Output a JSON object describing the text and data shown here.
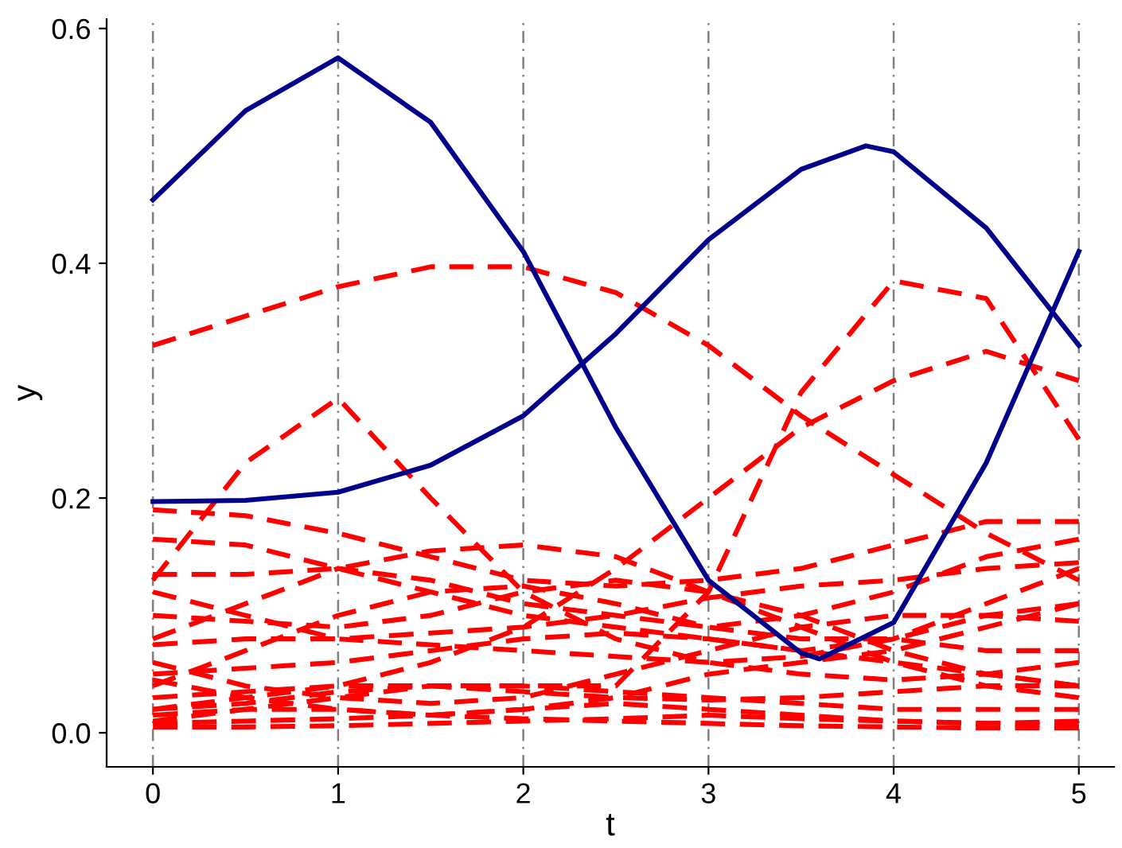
{
  "chart_data": {
    "type": "line",
    "xlabel": "t",
    "ylabel": "y",
    "x": [
      0,
      0.5,
      1,
      1.5,
      2,
      2.5,
      3,
      3.5,
      4,
      4.5,
      5
    ],
    "xlim": [
      -0.25,
      5.19
    ],
    "xticks": [
      0,
      1,
      2,
      3,
      4,
      5
    ],
    "ylim": [
      -0.029,
      0.608
    ],
    "yticks": [
      {
        "value": 0,
        "label": "0.0"
      },
      {
        "value": 0.2,
        "label": "0.2"
      },
      {
        "value": 0.4,
        "label": "0.4"
      },
      {
        "value": 0.6,
        "label": "0.6"
      }
    ],
    "grid": false,
    "legend": false,
    "ref_lines": [
      {
        "axis": "x",
        "value": 0,
        "color": "#808080",
        "line_style": "dashdot"
      },
      {
        "axis": "x",
        "value": 1,
        "color": "#808080",
        "line_style": "dashdot"
      },
      {
        "axis": "x",
        "value": 2,
        "color": "#808080",
        "line_style": "dashdot"
      },
      {
        "axis": "x",
        "value": 3,
        "color": "#808080",
        "line_style": "dashdot"
      },
      {
        "axis": "x",
        "value": 4,
        "color": "#808080",
        "line_style": "dashdot"
      },
      {
        "axis": "x",
        "value": 5,
        "color": "#808080",
        "line_style": "dashdot"
      }
    ],
    "series": [
      {
        "color": "#ff0000",
        "line_style": "dashed",
        "values": [
          0.33,
          0.355,
          0.38,
          0.397,
          0.397,
          0.375,
          0.33,
          0.27,
          0.22,
          0.17,
          0.13
        ]
      },
      {
        "color": "#ff0000",
        "line_style": "dashed",
        "values": [
          0.13,
          0.23,
          0.285,
          0.2,
          0.12,
          0.08,
          0.06,
          0.05,
          0.045,
          0.05,
          0.06
        ]
      },
      {
        "color": "#ff0000",
        "line_style": "dashed",
        "values": [
          0.01,
          0.02,
          0.03,
          0.04,
          0.04,
          0.04,
          0.12,
          0.29,
          0.385,
          0.37,
          0.25
        ]
      },
      {
        "color": "#ff0000",
        "line_style": "dashed",
        "values": [
          0.02,
          0.03,
          0.04,
          0.06,
          0.09,
          0.14,
          0.2,
          0.26,
          0.3,
          0.325,
          0.3
        ]
      },
      {
        "color": "#ff0000",
        "line_style": "dashed",
        "values": [
          0.19,
          0.185,
          0.17,
          0.15,
          0.13,
          0.125,
          0.13,
          0.14,
          0.16,
          0.18,
          0.18
        ]
      },
      {
        "color": "#ff0000",
        "line_style": "dashed",
        "values": [
          0.165,
          0.16,
          0.14,
          0.12,
          0.1,
          0.09,
          0.08,
          0.07,
          0.08,
          0.1,
          0.11
        ]
      },
      {
        "color": "#ff0000",
        "line_style": "dashed",
        "values": [
          0.135,
          0.135,
          0.14,
          0.155,
          0.16,
          0.15,
          0.12,
          0.09,
          0.06,
          0.04,
          0.03
        ]
      },
      {
        "color": "#ff0000",
        "line_style": "dashed",
        "values": [
          0.08,
          0.11,
          0.14,
          0.13,
          0.11,
          0.1,
          0.09,
          0.1,
          0.12,
          0.15,
          0.165
        ]
      },
      {
        "color": "#ff0000",
        "line_style": "dashed",
        "values": [
          0.075,
          0.08,
          0.08,
          0.085,
          0.09,
          0.1,
          0.115,
          0.125,
          0.13,
          0.14,
          0.145
        ]
      },
      {
        "color": "#ff0000",
        "line_style": "dashed",
        "values": [
          0.05,
          0.055,
          0.06,
          0.07,
          0.08,
          0.085,
          0.08,
          0.07,
          0.06,
          0.05,
          0.04
        ]
      },
      {
        "color": "#ff0000",
        "line_style": "dashed",
        "values": [
          0.04,
          0.07,
          0.1,
          0.12,
          0.125,
          0.11,
          0.09,
          0.08,
          0.08,
          0.07,
          0.07
        ]
      },
      {
        "color": "#ff0000",
        "line_style": "dashed",
        "values": [
          0.06,
          0.04,
          0.03,
          0.025,
          0.03,
          0.05,
          0.07,
          0.09,
          0.1,
          0.1,
          0.095
        ]
      },
      {
        "color": "#ff0000",
        "line_style": "dashed",
        "values": [
          0.02,
          0.025,
          0.035,
          0.04,
          0.04,
          0.035,
          0.03,
          0.025,
          0.02,
          0.02,
          0.02
        ]
      },
      {
        "color": "#ff0000",
        "line_style": "dashed",
        "values": [
          0.015,
          0.02,
          0.02,
          0.015,
          0.02,
          0.03,
          0.05,
          0.06,
          0.07,
          0.09,
          0.11
        ]
      },
      {
        "color": "#ff0000",
        "line_style": "dashed",
        "values": [
          0.008,
          0.01,
          0.012,
          0.015,
          0.02,
          0.025,
          0.02,
          0.015,
          0.01,
          0.008,
          0.006
        ]
      },
      {
        "color": "#ff0000",
        "line_style": "dashed",
        "values": [
          0.005,
          0.005,
          0.006,
          0.008,
          0.01,
          0.012,
          0.015,
          0.012,
          0.01,
          0.008,
          0.01
        ]
      },
      {
        "color": "#ff0000",
        "line_style": "dashed",
        "values": [
          0.045,
          0.03,
          0.02,
          0.015,
          0.012,
          0.01,
          0.008,
          0.006,
          0.005,
          0.004,
          0.004
        ]
      },
      {
        "color": "#ff0000",
        "line_style": "dashed",
        "values": [
          0.12,
          0.1,
          0.08,
          0.075,
          0.07,
          0.065,
          0.06,
          0.065,
          0.08,
          0.11,
          0.14
        ]
      },
      {
        "color": "#ff0000",
        "line_style": "dashed",
        "values": [
          0.03,
          0.035,
          0.04,
          0.04,
          0.035,
          0.03,
          0.028,
          0.03,
          0.035,
          0.04,
          0.04
        ]
      },
      {
        "color": "#ff0000",
        "line_style": "dashed",
        "values": [
          0.1,
          0.095,
          0.09,
          0.1,
          0.12,
          0.13,
          0.12,
          0.1,
          0.07,
          0.05,
          0.04
        ]
      },
      {
        "color": "#00008b",
        "line_style": "solid",
        "x": [
          0,
          0.5,
          1,
          1.5,
          2,
          2.5,
          3,
          3.5,
          3.6,
          4,
          4.5,
          5
        ],
        "values": [
          0.454,
          0.53,
          0.575,
          0.52,
          0.41,
          0.26,
          0.13,
          0.068,
          0.063,
          0.094,
          0.23,
          0.41
        ]
      },
      {
        "color": "#00008b",
        "line_style": "solid",
        "x": [
          0,
          0.5,
          1,
          1.5,
          2,
          2.5,
          3,
          3.5,
          3.85,
          4,
          4.5,
          5
        ],
        "values": [
          0.197,
          0.198,
          0.205,
          0.228,
          0.27,
          0.34,
          0.42,
          0.48,
          0.5,
          0.495,
          0.43,
          0.33
        ]
      }
    ]
  }
}
